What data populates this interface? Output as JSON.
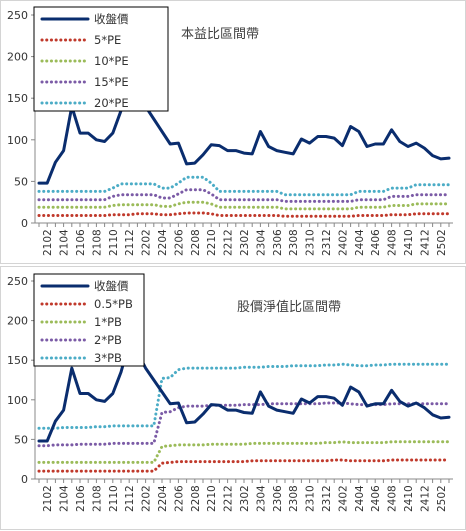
{
  "chart_data": [
    {
      "type": "line",
      "title": "本益比區間帶",
      "x": [
        "2101",
        "2102",
        "2103",
        "2104",
        "2105",
        "2106",
        "2107",
        "2108",
        "2109",
        "2110",
        "2111",
        "2112",
        "2201",
        "2202",
        "2203",
        "2204",
        "2205",
        "2206",
        "2207",
        "2208",
        "2209",
        "2210",
        "2211",
        "2212",
        "2301",
        "2302",
        "2303",
        "2304",
        "2305",
        "2306",
        "2307",
        "2308",
        "2309",
        "2310",
        "2311",
        "2312",
        "2401",
        "2402",
        "2403",
        "2404",
        "2405",
        "2406",
        "2407",
        "2408",
        "2409",
        "2410",
        "2411",
        "2412",
        "2501",
        "2502",
        "2503"
      ],
      "x_tick_labels": [
        "2102",
        "2104",
        "2106",
        "2108",
        "2110",
        "2112",
        "2202",
        "2204",
        "2206",
        "2208",
        "2210",
        "2212",
        "2302",
        "2304",
        "2306",
        "2308",
        "2310",
        "2312",
        "2402",
        "2404",
        "2406",
        "2408",
        "2410",
        "2412",
        "2502"
      ],
      "ylim": [
        0,
        250
      ],
      "yticks": [
        0,
        50,
        100,
        150,
        200,
        250
      ],
      "legend_position": "top-left",
      "series": [
        {
          "name": "收盤價",
          "style": "solid",
          "color": "#0a2d6e",
          "values": [
            48,
            48,
            73,
            87,
            140,
            108,
            108,
            100,
            98,
            108,
            135,
            172,
            160,
            140,
            125,
            110,
            95,
            96,
            71,
            72,
            82,
            94,
            93,
            87,
            87,
            84,
            83,
            110,
            92,
            87,
            85,
            83,
            101,
            96,
            104,
            104,
            102,
            93,
            116,
            110,
            92,
            95,
            95,
            112,
            98,
            92,
            96,
            90,
            81,
            77,
            78
          ]
        },
        {
          "name": "5*PE",
          "style": "dotted",
          "color": "#c0392b",
          "values": [
            9,
            9,
            9,
            9,
            9,
            9,
            9,
            9,
            9,
            10,
            10,
            10,
            11,
            11,
            11,
            10,
            10,
            11,
            12,
            12,
            12,
            11,
            9,
            9,
            9,
            9,
            9,
            9,
            9,
            9,
            8,
            8,
            8,
            8,
            8,
            8,
            8,
            8,
            8,
            9,
            9,
            9,
            9,
            10,
            10,
            10,
            11,
            11,
            11,
            11,
            11
          ]
        },
        {
          "name": "10*PE",
          "style": "dotted",
          "color": "#9bbb59",
          "values": [
            19,
            19,
            19,
            19,
            19,
            19,
            19,
            19,
            19,
            21,
            22,
            22,
            22,
            22,
            22,
            20,
            20,
            23,
            25,
            25,
            25,
            23,
            19,
            19,
            19,
            19,
            19,
            19,
            19,
            19,
            17,
            17,
            17,
            17,
            17,
            17,
            17,
            17,
            17,
            19,
            19,
            19,
            19,
            21,
            21,
            21,
            23,
            23,
            23,
            23,
            23
          ]
        },
        {
          "name": "15*PE",
          "style": "dotted",
          "color": "#7b5ba6",
          "values": [
            28,
            28,
            28,
            28,
            28,
            28,
            28,
            28,
            28,
            32,
            34,
            34,
            34,
            34,
            34,
            30,
            30,
            35,
            40,
            40,
            40,
            35,
            28,
            28,
            28,
            28,
            28,
            28,
            28,
            28,
            26,
            26,
            26,
            26,
            26,
            26,
            26,
            26,
            26,
            28,
            28,
            28,
            28,
            32,
            32,
            32,
            34,
            34,
            34,
            34,
            34
          ]
        },
        {
          "name": "20*PE",
          "style": "dotted",
          "color": "#4bacc6",
          "values": [
            38,
            38,
            38,
            38,
            38,
            38,
            38,
            38,
            38,
            42,
            47,
            47,
            47,
            47,
            47,
            42,
            42,
            48,
            55,
            55,
            55,
            48,
            38,
            38,
            38,
            38,
            38,
            38,
            38,
            38,
            34,
            34,
            34,
            34,
            34,
            34,
            34,
            34,
            34,
            38,
            38,
            38,
            38,
            42,
            42,
            42,
            46,
            46,
            46,
            46,
            46
          ]
        }
      ]
    },
    {
      "type": "line",
      "title": "股價淨值比區間帶",
      "x": [
        "2101",
        "2102",
        "2103",
        "2104",
        "2105",
        "2106",
        "2107",
        "2108",
        "2109",
        "2110",
        "2111",
        "2112",
        "2201",
        "2202",
        "2203",
        "2204",
        "2205",
        "2206",
        "2207",
        "2208",
        "2209",
        "2210",
        "2211",
        "2212",
        "2301",
        "2302",
        "2303",
        "2304",
        "2305",
        "2306",
        "2307",
        "2308",
        "2309",
        "2310",
        "2311",
        "2312",
        "2401",
        "2402",
        "2403",
        "2404",
        "2405",
        "2406",
        "2407",
        "2408",
        "2409",
        "2410",
        "2411",
        "2412",
        "2501",
        "2502",
        "2503"
      ],
      "x_tick_labels": [
        "2102",
        "2104",
        "2106",
        "2108",
        "2110",
        "2112",
        "2202",
        "2204",
        "2206",
        "2208",
        "2210",
        "2212",
        "2302",
        "2304",
        "2306",
        "2308",
        "2310",
        "2312",
        "2402",
        "2404",
        "2406",
        "2408",
        "2410",
        "2412",
        "2502"
      ],
      "ylim": [
        0,
        250
      ],
      "yticks": [
        0,
        50,
        100,
        150,
        200,
        250
      ],
      "legend_position": "top-left",
      "series": [
        {
          "name": "收盤價",
          "style": "solid",
          "color": "#0a2d6e",
          "values": [
            48,
            48,
            73,
            87,
            140,
            108,
            108,
            100,
            98,
            108,
            135,
            172,
            160,
            140,
            125,
            110,
            95,
            96,
            71,
            72,
            82,
            94,
            93,
            87,
            87,
            84,
            83,
            110,
            92,
            87,
            85,
            83,
            101,
            96,
            104,
            104,
            102,
            93,
            116,
            110,
            92,
            95,
            95,
            112,
            98,
            92,
            96,
            90,
            81,
            77,
            78
          ]
        },
        {
          "name": "0.5*PB",
          "style": "dotted",
          "color": "#c0392b",
          "values": [
            10,
            10,
            10,
            10,
            10,
            10,
            10,
            10,
            10,
            10,
            10,
            10,
            10,
            10,
            10,
            20,
            21,
            22,
            22,
            22,
            22,
            22,
            22,
            22,
            22,
            22,
            23,
            23,
            23,
            23,
            23,
            23,
            23,
            23,
            23,
            23,
            24,
            24,
            23,
            23,
            23,
            23,
            23,
            24,
            24,
            24,
            24,
            24,
            24,
            24,
            24
          ]
        },
        {
          "name": "1*PB",
          "style": "dotted",
          "color": "#9bbb59",
          "values": [
            21,
            21,
            21,
            21,
            21,
            21,
            21,
            21,
            21,
            21,
            21,
            21,
            21,
            21,
            21,
            41,
            42,
            43,
            43,
            43,
            43,
            44,
            44,
            44,
            44,
            44,
            45,
            45,
            45,
            45,
            45,
            45,
            45,
            45,
            45,
            46,
            46,
            47,
            46,
            46,
            46,
            46,
            46,
            47,
            47,
            47,
            47,
            47,
            47,
            47,
            47
          ]
        },
        {
          "name": "2*PB",
          "style": "dotted",
          "color": "#7b5ba6",
          "values": [
            42,
            42,
            43,
            43,
            43,
            44,
            44,
            44,
            44,
            45,
            45,
            45,
            45,
            45,
            45,
            84,
            85,
            90,
            92,
            92,
            92,
            93,
            93,
            93,
            93,
            94,
            94,
            94,
            95,
            95,
            95,
            95,
            95,
            95,
            95,
            96,
            96,
            96,
            95,
            94,
            94,
            94,
            94,
            95,
            95,
            95,
            95,
            95,
            95,
            95,
            95
          ]
        },
        {
          "name": "3*PB",
          "style": "dotted",
          "color": "#4bacc6",
          "values": [
            64,
            64,
            64,
            65,
            65,
            65,
            65,
            66,
            66,
            67,
            67,
            67,
            67,
            67,
            67,
            127,
            128,
            138,
            140,
            140,
            140,
            140,
            140,
            140,
            140,
            141,
            141,
            141,
            142,
            142,
            142,
            143,
            143,
            143,
            143,
            144,
            144,
            145,
            144,
            143,
            143,
            144,
            144,
            145,
            145,
            145,
            145,
            145,
            145,
            145,
            145
          ]
        }
      ]
    }
  ]
}
